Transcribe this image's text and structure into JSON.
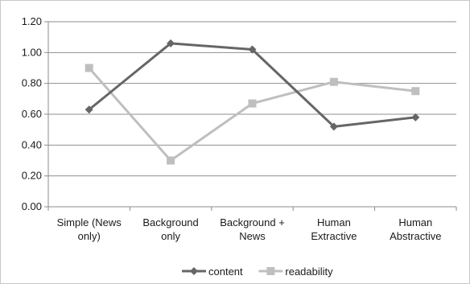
{
  "chart_data": {
    "type": "line",
    "categories": [
      [
        "Simple (News",
        "only)"
      ],
      [
        "Background",
        "only"
      ],
      [
        "Background +",
        "News"
      ],
      [
        "Human",
        "Extractive"
      ],
      [
        "Human",
        "Abstractive"
      ]
    ],
    "series": [
      {
        "name": "content",
        "values": [
          0.63,
          1.06,
          1.02,
          0.52,
          0.58
        ],
        "color": "#666666",
        "marker": "diamond"
      },
      {
        "name": "readability",
        "values": [
          0.9,
          0.3,
          0.67,
          0.81,
          0.75
        ],
        "color": "#bfbfbf",
        "marker": "square"
      }
    ],
    "ylim": [
      0,
      1.2
    ],
    "yticks": [
      "0.00",
      "0.20",
      "0.40",
      "0.60",
      "0.80",
      "1.00",
      "1.20"
    ],
    "grid": true,
    "legend": "bottom",
    "title": "",
    "xlabel": "",
    "ylabel": ""
  }
}
